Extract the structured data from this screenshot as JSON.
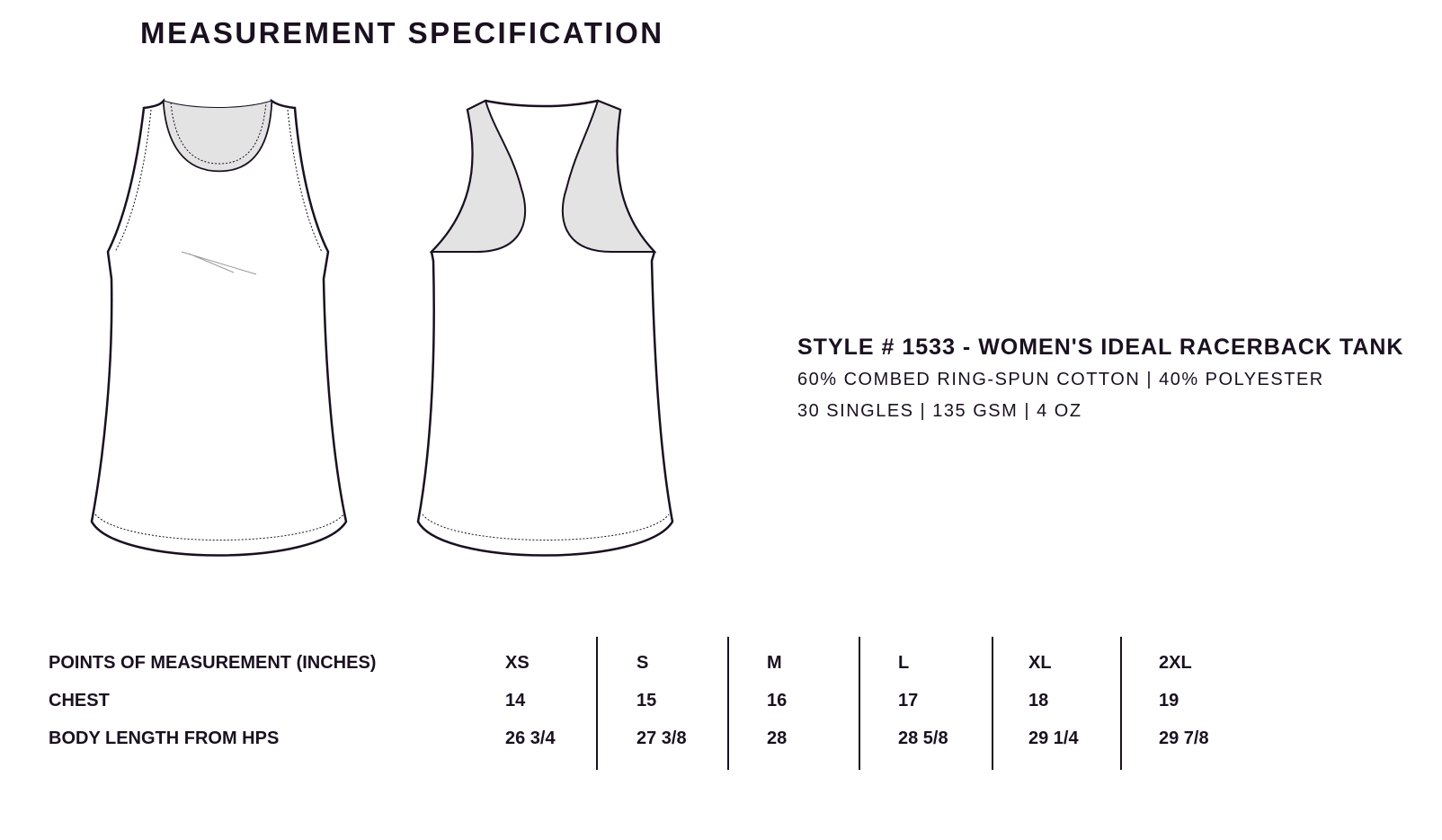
{
  "title": "MEASUREMENT SPECIFICATION",
  "product": {
    "style_line": "STYLE # 1533 - WOMEN'S IDEAL RACERBACK TANK",
    "fabric": "60% COMBED RING-SPUN COTTON | 40% POLYESTER",
    "specs": "30 SINGLES | 135 GSM | 4 OZ"
  },
  "table": {
    "header": "POINTS OF MEASUREMENT (INCHES)",
    "sizes": [
      "XS",
      "S",
      "M",
      "L",
      "XL",
      "2XL"
    ],
    "rows": [
      {
        "label": "CHEST",
        "values": [
          "14",
          "15",
          "16",
          "17",
          "18",
          "19"
        ]
      },
      {
        "label": "BODY LENGTH FROM HPS",
        "values": [
          "26 3/4",
          "27 3/8",
          "28",
          "28 5/8",
          "29 1/4",
          "29 7/8"
        ]
      }
    ]
  }
}
